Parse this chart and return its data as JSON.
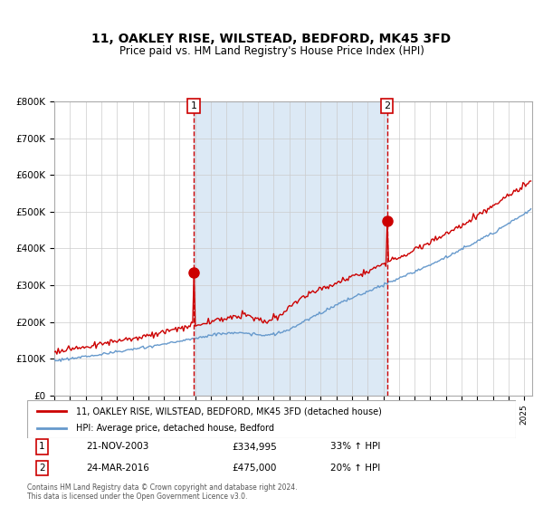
{
  "title": "11, OAKLEY RISE, WILSTEAD, BEDFORD, MK45 3FD",
  "subtitle": "Price paid vs. HM Land Registry's House Price Index (HPI)",
  "legend_line1": "11, OAKLEY RISE, WILSTEAD, BEDFORD, MK45 3FD (detached house)",
  "legend_line2": "HPI: Average price, detached house, Bedford",
  "annotation1_label": "1",
  "annotation1_date": "21-NOV-2003",
  "annotation1_price": "£334,995",
  "annotation1_hpi": "33% ↑ HPI",
  "annotation2_label": "2",
  "annotation2_date": "24-MAR-2016",
  "annotation2_price": "£475,000",
  "annotation2_hpi": "20% ↑ HPI",
  "footer": "Contains HM Land Registry data © Crown copyright and database right 2024.\nThis data is licensed under the Open Government Licence v3.0.",
  "red_color": "#cc0000",
  "blue_color": "#6699cc",
  "bg_shaded": "#dce9f5",
  "vline_color": "#cc0000",
  "point1_x": 2003.9,
  "point1_y": 334995,
  "point2_x": 2016.23,
  "point2_y": 475000,
  "ylim": [
    0,
    800000
  ],
  "xlim_start": 1995.0,
  "xlim_end": 2025.5
}
